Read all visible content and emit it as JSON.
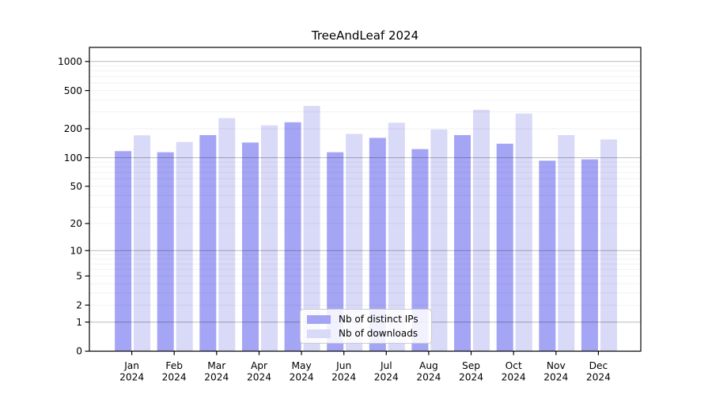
{
  "chart_data": {
    "type": "bar",
    "title": "TreeAndLeaf 2024",
    "yscale": "log1p",
    "categories": [
      "Jan",
      "Feb",
      "Mar",
      "Apr",
      "May",
      "Jun",
      "Jul",
      "Aug",
      "Sep",
      "Oct",
      "Nov",
      "Dec"
    ],
    "category_year": "2024",
    "series": [
      {
        "name": "Nb of distinct IPs",
        "color": "#a5a5f5",
        "values": [
          117,
          114,
          172,
          144,
          234,
          114,
          161,
          123,
          172,
          140,
          93,
          96
        ]
      },
      {
        "name": "Nb of downloads",
        "color": "#d9d9f8",
        "values": [
          171,
          146,
          258,
          217,
          346,
          177,
          231,
          197,
          316,
          288,
          172,
          155
        ]
      }
    ],
    "yticks": [
      0,
      1,
      2,
      5,
      10,
      20,
      50,
      100,
      200,
      500,
      1000
    ],
    "ylim": [
      0,
      1400
    ],
    "xlabel": "",
    "ylabel": "",
    "grid": "major-and-minor",
    "legend_position": "lower center"
  },
  "colors": {
    "background": "#ffffff",
    "axis": "#000000",
    "text": "#000000",
    "grid_major": "rgba(0,0,0,0.28)",
    "grid_minor": "rgba(0,0,0,0.055)",
    "legend_border": "#cccccc"
  }
}
